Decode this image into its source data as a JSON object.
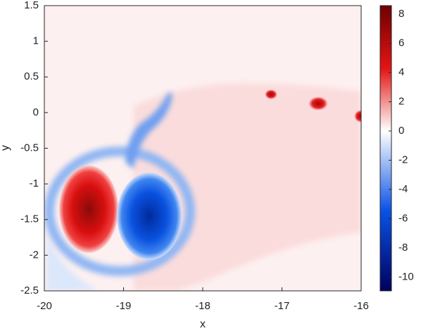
{
  "chart_data": {
    "type": "heatmap",
    "xlabel": "x",
    "ylabel": "y",
    "xlim": [
      -20,
      -16
    ],
    "xticks": [
      -20,
      -19,
      -18,
      -17,
      -16
    ],
    "ylim": [
      -2.5,
      1.5
    ],
    "yticks": [
      -2.5,
      -2,
      -1.5,
      -1,
      -0.5,
      0,
      0.5,
      1,
      1.5
    ],
    "colorbar": {
      "lim": [
        -10.94,
        8.58
      ],
      "ticks": [
        -10,
        -8,
        -6,
        -4,
        -2,
        0,
        2,
        4,
        6,
        8
      ],
      "colormap": [
        "#00005e",
        "#0a52e6",
        "#ffffff",
        "#e41414",
        "#6e0000"
      ]
    }
  }
}
